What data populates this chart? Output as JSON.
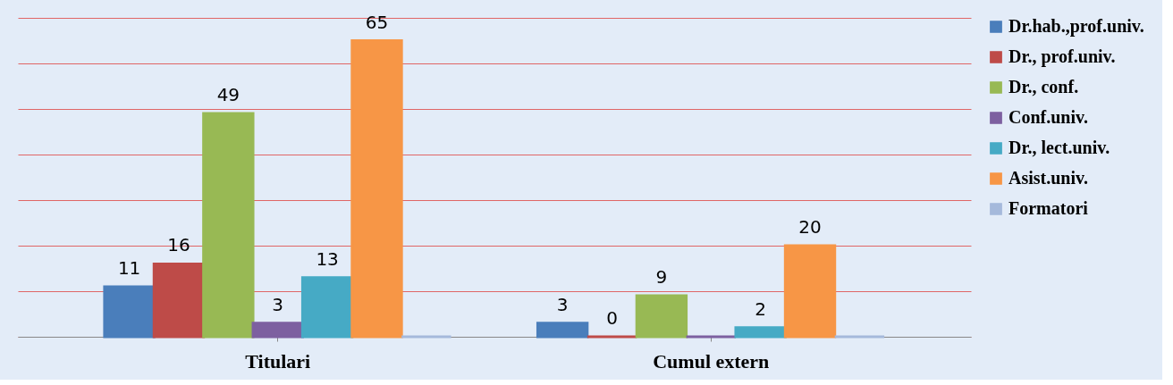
{
  "chart_data": {
    "type": "bar",
    "categories": [
      "Titulari",
      "Cumul extern"
    ],
    "series": [
      {
        "name": "Dr.hab.,prof.univ.",
        "color": "#4a7ebb",
        "values": [
          11,
          3
        ],
        "value_labels": [
          "11",
          "3"
        ]
      },
      {
        "name": "Dr., prof.univ.",
        "color": "#be4b48",
        "values": [
          16,
          0
        ],
        "value_labels": [
          "16",
          "0"
        ]
      },
      {
        "name": "Dr., conf.",
        "color": "#98b954",
        "values": [
          49,
          9
        ],
        "value_labels": [
          "49",
          "9"
        ]
      },
      {
        "name": "Conf.univ.",
        "color": "#7d60a0",
        "values": [
          3,
          0
        ],
        "value_labels": [
          "3",
          null
        ]
      },
      {
        "name": "Dr., lect.univ.",
        "color": "#46aac5",
        "values": [
          13,
          2
        ],
        "value_labels": [
          "13",
          "2"
        ]
      },
      {
        "name": "Asist.univ.",
        "color": "#f79646",
        "values": [
          65,
          20
        ],
        "value_labels": [
          "65",
          "20"
        ]
      },
      {
        "name": "Formatori",
        "color": "#a5b9db",
        "values": [
          0,
          0
        ],
        "value_labels": [
          null,
          null
        ]
      }
    ],
    "ylim": [
      0,
      70
    ],
    "yticks": [
      {
        "value": 0,
        "label": null
      },
      {
        "value": 10,
        "label": null
      },
      {
        "value": 20,
        "label": null
      },
      {
        "value": 30,
        "label": null
      },
      {
        "value": 40,
        "label": null
      },
      {
        "value": 50,
        "label": null
      },
      {
        "value": 60,
        "label": null
      },
      {
        "value": 70,
        "label": null
      }
    ],
    "grid": "y",
    "tick_labels": "x",
    "legend": "right"
  }
}
